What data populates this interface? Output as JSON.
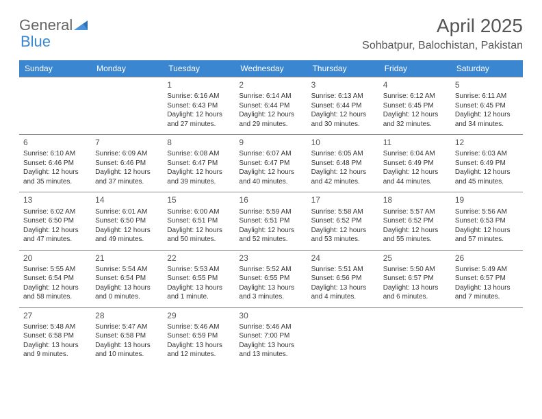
{
  "logo": {
    "text1": "General",
    "text2": "Blue"
  },
  "title": "April 2025",
  "location": "Sohbatpur, Balochistan, Pakistan",
  "dayNames": [
    "Sunday",
    "Monday",
    "Tuesday",
    "Wednesday",
    "Thursday",
    "Friday",
    "Saturday"
  ],
  "colors": {
    "headerBg": "#3a86d0",
    "headerText": "#ffffff",
    "borderColor": "#888888",
    "titleColor": "#555555"
  },
  "weeks": [
    [
      null,
      null,
      {
        "n": "1",
        "sr": "Sunrise: 6:16 AM",
        "ss": "Sunset: 6:43 PM",
        "dl": "Daylight: 12 hours and 27 minutes."
      },
      {
        "n": "2",
        "sr": "Sunrise: 6:14 AM",
        "ss": "Sunset: 6:44 PM",
        "dl": "Daylight: 12 hours and 29 minutes."
      },
      {
        "n": "3",
        "sr": "Sunrise: 6:13 AM",
        "ss": "Sunset: 6:44 PM",
        "dl": "Daylight: 12 hours and 30 minutes."
      },
      {
        "n": "4",
        "sr": "Sunrise: 6:12 AM",
        "ss": "Sunset: 6:45 PM",
        "dl": "Daylight: 12 hours and 32 minutes."
      },
      {
        "n": "5",
        "sr": "Sunrise: 6:11 AM",
        "ss": "Sunset: 6:45 PM",
        "dl": "Daylight: 12 hours and 34 minutes."
      }
    ],
    [
      {
        "n": "6",
        "sr": "Sunrise: 6:10 AM",
        "ss": "Sunset: 6:46 PM",
        "dl": "Daylight: 12 hours and 35 minutes."
      },
      {
        "n": "7",
        "sr": "Sunrise: 6:09 AM",
        "ss": "Sunset: 6:46 PM",
        "dl": "Daylight: 12 hours and 37 minutes."
      },
      {
        "n": "8",
        "sr": "Sunrise: 6:08 AM",
        "ss": "Sunset: 6:47 PM",
        "dl": "Daylight: 12 hours and 39 minutes."
      },
      {
        "n": "9",
        "sr": "Sunrise: 6:07 AM",
        "ss": "Sunset: 6:47 PM",
        "dl": "Daylight: 12 hours and 40 minutes."
      },
      {
        "n": "10",
        "sr": "Sunrise: 6:05 AM",
        "ss": "Sunset: 6:48 PM",
        "dl": "Daylight: 12 hours and 42 minutes."
      },
      {
        "n": "11",
        "sr": "Sunrise: 6:04 AM",
        "ss": "Sunset: 6:49 PM",
        "dl": "Daylight: 12 hours and 44 minutes."
      },
      {
        "n": "12",
        "sr": "Sunrise: 6:03 AM",
        "ss": "Sunset: 6:49 PM",
        "dl": "Daylight: 12 hours and 45 minutes."
      }
    ],
    [
      {
        "n": "13",
        "sr": "Sunrise: 6:02 AM",
        "ss": "Sunset: 6:50 PM",
        "dl": "Daylight: 12 hours and 47 minutes."
      },
      {
        "n": "14",
        "sr": "Sunrise: 6:01 AM",
        "ss": "Sunset: 6:50 PM",
        "dl": "Daylight: 12 hours and 49 minutes."
      },
      {
        "n": "15",
        "sr": "Sunrise: 6:00 AM",
        "ss": "Sunset: 6:51 PM",
        "dl": "Daylight: 12 hours and 50 minutes."
      },
      {
        "n": "16",
        "sr": "Sunrise: 5:59 AM",
        "ss": "Sunset: 6:51 PM",
        "dl": "Daylight: 12 hours and 52 minutes."
      },
      {
        "n": "17",
        "sr": "Sunrise: 5:58 AM",
        "ss": "Sunset: 6:52 PM",
        "dl": "Daylight: 12 hours and 53 minutes."
      },
      {
        "n": "18",
        "sr": "Sunrise: 5:57 AM",
        "ss": "Sunset: 6:52 PM",
        "dl": "Daylight: 12 hours and 55 minutes."
      },
      {
        "n": "19",
        "sr": "Sunrise: 5:56 AM",
        "ss": "Sunset: 6:53 PM",
        "dl": "Daylight: 12 hours and 57 minutes."
      }
    ],
    [
      {
        "n": "20",
        "sr": "Sunrise: 5:55 AM",
        "ss": "Sunset: 6:54 PM",
        "dl": "Daylight: 12 hours and 58 minutes."
      },
      {
        "n": "21",
        "sr": "Sunrise: 5:54 AM",
        "ss": "Sunset: 6:54 PM",
        "dl": "Daylight: 13 hours and 0 minutes."
      },
      {
        "n": "22",
        "sr": "Sunrise: 5:53 AM",
        "ss": "Sunset: 6:55 PM",
        "dl": "Daylight: 13 hours and 1 minute."
      },
      {
        "n": "23",
        "sr": "Sunrise: 5:52 AM",
        "ss": "Sunset: 6:55 PM",
        "dl": "Daylight: 13 hours and 3 minutes."
      },
      {
        "n": "24",
        "sr": "Sunrise: 5:51 AM",
        "ss": "Sunset: 6:56 PM",
        "dl": "Daylight: 13 hours and 4 minutes."
      },
      {
        "n": "25",
        "sr": "Sunrise: 5:50 AM",
        "ss": "Sunset: 6:57 PM",
        "dl": "Daylight: 13 hours and 6 minutes."
      },
      {
        "n": "26",
        "sr": "Sunrise: 5:49 AM",
        "ss": "Sunset: 6:57 PM",
        "dl": "Daylight: 13 hours and 7 minutes."
      }
    ],
    [
      {
        "n": "27",
        "sr": "Sunrise: 5:48 AM",
        "ss": "Sunset: 6:58 PM",
        "dl": "Daylight: 13 hours and 9 minutes."
      },
      {
        "n": "28",
        "sr": "Sunrise: 5:47 AM",
        "ss": "Sunset: 6:58 PM",
        "dl": "Daylight: 13 hours and 10 minutes."
      },
      {
        "n": "29",
        "sr": "Sunrise: 5:46 AM",
        "ss": "Sunset: 6:59 PM",
        "dl": "Daylight: 13 hours and 12 minutes."
      },
      {
        "n": "30",
        "sr": "Sunrise: 5:46 AM",
        "ss": "Sunset: 7:00 PM",
        "dl": "Daylight: 13 hours and 13 minutes."
      },
      null,
      null,
      null
    ]
  ]
}
